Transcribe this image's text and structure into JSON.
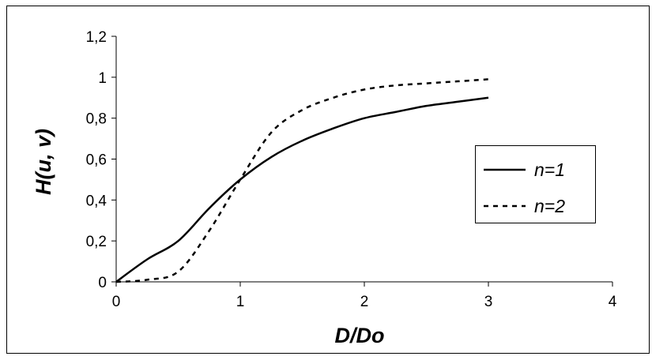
{
  "chart_data": {
    "type": "line",
    "title": "",
    "xlabel": "D/Do",
    "ylabel": "H(u, v)",
    "xlim": [
      0,
      4
    ],
    "ylim": [
      0,
      1.2
    ],
    "xticks": [
      0,
      1,
      2,
      3,
      4
    ],
    "yticks": [
      0,
      0.2,
      0.4,
      0.6,
      0.8,
      1,
      1.2
    ],
    "xtick_labels": [
      "0",
      "1",
      "2",
      "3",
      "4"
    ],
    "ytick_labels": [
      "0",
      "0,2",
      "0,4",
      "0,6",
      "0,8",
      "1",
      "1,2"
    ],
    "grid": false,
    "legend_position": "right",
    "series": [
      {
        "name": "n=1",
        "style": "solid",
        "color": "#000000",
        "x": [
          0,
          0.25,
          0.5,
          0.75,
          1,
          1.25,
          1.5,
          1.75,
          2,
          2.25,
          2.5,
          2.75,
          3
        ],
        "values": [
          0,
          0.11,
          0.2,
          0.36,
          0.5,
          0.61,
          0.69,
          0.75,
          0.8,
          0.83,
          0.86,
          0.88,
          0.9
        ]
      },
      {
        "name": "n=2",
        "style": "dashed",
        "color": "#000000",
        "x": [
          0,
          0.25,
          0.5,
          0.75,
          1,
          1.25,
          1.5,
          1.75,
          2,
          2.25,
          2.5,
          2.75,
          3
        ],
        "values": [
          0,
          0.01,
          0.05,
          0.25,
          0.5,
          0.73,
          0.84,
          0.9,
          0.94,
          0.96,
          0.97,
          0.98,
          0.99
        ]
      }
    ]
  }
}
